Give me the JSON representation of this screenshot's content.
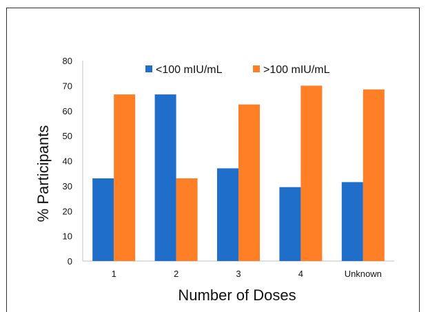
{
  "chart_data": {
    "type": "bar",
    "categories": [
      "1",
      "2",
      "3",
      "4",
      "Unknown"
    ],
    "series": [
      {
        "name": "<100 mIU/mL",
        "color": "#1F6EC9",
        "values": [
          33,
          66.5,
          37,
          29.5,
          31.5
        ]
      },
      {
        "name": ">100 mIU/mL",
        "color": "#FF7F27",
        "values": [
          66.5,
          33,
          62.5,
          70,
          68.5
        ]
      }
    ],
    "title": "",
    "xlabel": "Number of Doses",
    "ylabel": "% Participants",
    "ylim": [
      0,
      80
    ],
    "yticks": [
      "0",
      "10",
      "20",
      "30",
      "40",
      "50",
      "60",
      "70",
      "80"
    ],
    "grid": false,
    "legend_position": "top-center"
  }
}
